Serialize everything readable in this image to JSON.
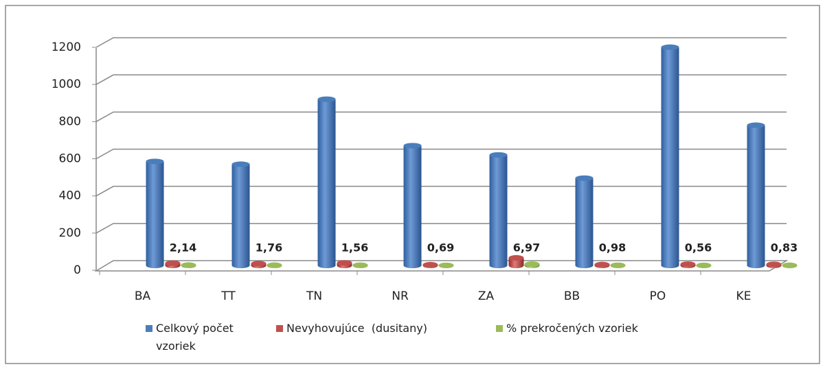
{
  "chart_data": {
    "type": "bar3d",
    "categories": [
      "BA",
      "TT",
      "TN",
      "NR",
      "ZA",
      "BB",
      "PO",
      "KE"
    ],
    "series": [
      {
        "name": "Celkový počet vzoriek",
        "color": "#4a7ebb",
        "values": [
          560,
          545,
          895,
          645,
          595,
          470,
          1175,
          755
        ]
      },
      {
        "name": "Nevyhovujúce  (dusitany)",
        "color": "#c0504d",
        "values": [
          12,
          10,
          14,
          4,
          41,
          5,
          7,
          6
        ]
      },
      {
        "name": "% prekročených vzoriek",
        "color": "#9bbb59",
        "values": [
          2.14,
          1.76,
          1.56,
          0.69,
          6.97,
          0.98,
          0.56,
          0.83
        ],
        "value_labels": [
          "2,14",
          "1,76",
          "1,56",
          "0,69",
          "6,97",
          "0,98",
          "0,56",
          "0,83"
        ]
      }
    ],
    "ylim": [
      0,
      1200
    ],
    "yticks": [
      0,
      200,
      400,
      600,
      800,
      1000,
      1200
    ],
    "grid": true,
    "legend": "bottom"
  }
}
